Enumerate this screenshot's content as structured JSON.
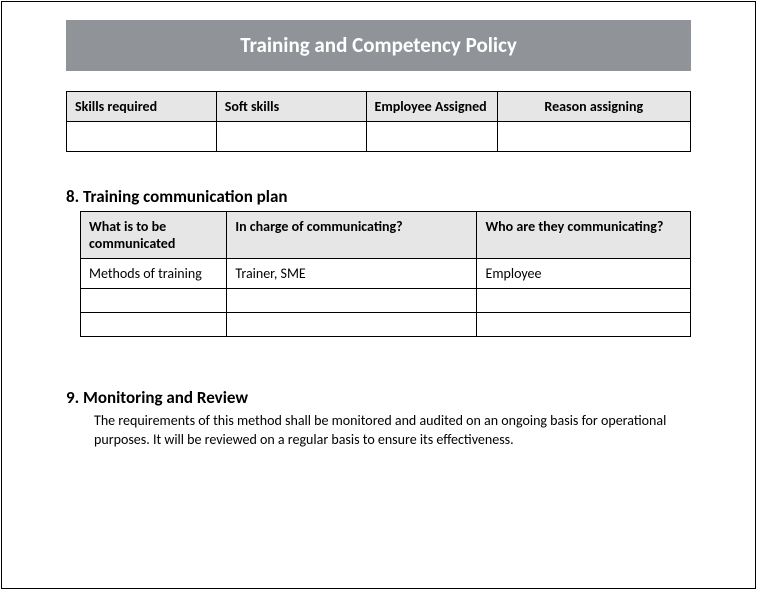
{
  "banner": {
    "title": "Training and Competency Policy",
    "bg_color": "#909499",
    "text_color": "#ffffff"
  },
  "skills_table": {
    "headers": [
      "Skills required",
      "Soft skills",
      "Employee Assigned",
      "Reason assigning"
    ],
    "rows": [
      [
        "",
        "",
        "",
        ""
      ]
    ]
  },
  "section8": {
    "heading": "8. Training communication plan",
    "table": {
      "headers": [
        "What is to be communicated",
        "In charge of communicating?",
        "Who are they communicating?"
      ],
      "rows": [
        [
          "Methods of training",
          "Trainer, SME",
          "Employee"
        ],
        [
          "",
          "",
          ""
        ],
        [
          "",
          "",
          ""
        ]
      ]
    }
  },
  "section9": {
    "heading": "9. Monitoring and Review",
    "body": "The requirements of this method shall be monitored and audited on an ongoing basis for operational purposes. It will be reviewed on a regular basis to ensure its effectiveness."
  },
  "styling": {
    "page_border_color": "#000000",
    "table_border_color": "#000000",
    "header_bg": "#e7e6e6",
    "font_family": "Calibri",
    "heading_fontsize": 17,
    "body_fontsize": 14,
    "banner_fontsize": 21
  }
}
